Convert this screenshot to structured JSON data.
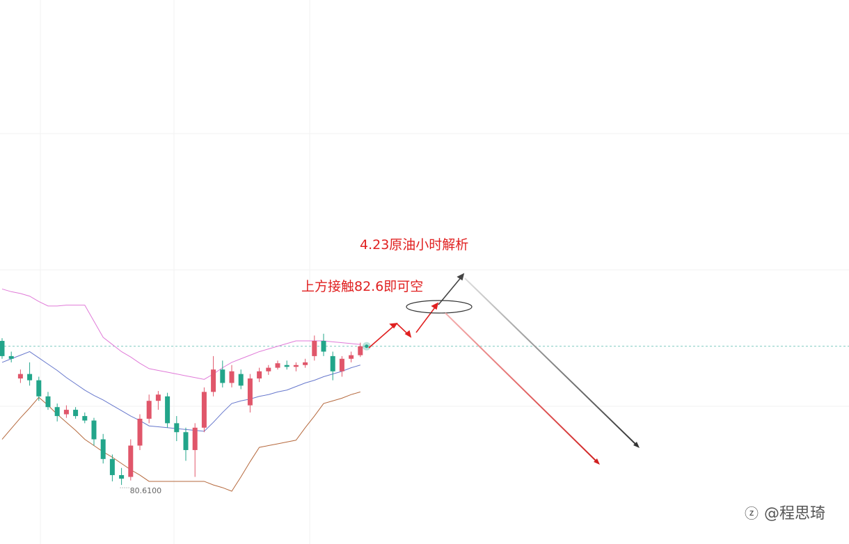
{
  "chart_data": {
    "type": "candlestick",
    "title": "4.23原油小时解析",
    "annotation": "上方接触82.6即可空",
    "low_label": "80.6100",
    "watermark": "@程思琦",
    "ylim": [
      79.95,
      86.03
    ],
    "up_color": "#e0566a",
    "down_color": "#22a58a",
    "candles": [
      [
        82.22,
        82.25,
        82.02,
        82.05
      ],
      [
        82.05,
        82.1,
        81.98,
        82.02
      ],
      [
        81.8,
        81.9,
        81.75,
        81.85
      ],
      [
        81.85,
        81.98,
        81.72,
        81.78
      ],
      [
        81.78,
        81.82,
        81.55,
        81.6
      ],
      [
        81.6,
        81.65,
        81.45,
        81.48
      ],
      [
        81.48,
        81.52,
        81.32,
        81.38
      ],
      [
        81.4,
        81.5,
        81.36,
        81.45
      ],
      [
        81.45,
        81.48,
        81.35,
        81.38
      ],
      [
        81.38,
        81.42,
        81.3,
        81.33
      ],
      [
        81.33,
        81.36,
        81.05,
        81.12
      ],
      [
        81.12,
        81.18,
        80.85,
        80.9
      ],
      [
        80.9,
        80.95,
        80.65,
        80.72
      ],
      [
        80.72,
        80.8,
        80.61,
        80.68
      ],
      [
        80.7,
        81.12,
        80.66,
        81.05
      ],
      [
        81.05,
        81.4,
        81.0,
        81.35
      ],
      [
        81.35,
        81.62,
        81.3,
        81.55
      ],
      [
        81.55,
        81.66,
        81.45,
        81.62
      ],
      [
        81.6,
        81.64,
        81.25,
        81.3
      ],
      [
        81.3,
        81.38,
        81.1,
        81.2
      ],
      [
        81.2,
        81.25,
        80.88,
        81.0
      ],
      [
        81.0,
        81.3,
        80.7,
        81.25
      ],
      [
        81.25,
        81.7,
        81.2,
        81.65
      ],
      [
        81.65,
        82.05,
        81.6,
        81.9
      ],
      [
        81.9,
        82.0,
        81.7,
        81.75
      ],
      [
        81.75,
        81.95,
        81.7,
        81.88
      ],
      [
        81.85,
        81.9,
        81.68,
        81.72
      ],
      [
        81.5,
        81.85,
        81.42,
        81.8
      ],
      [
        81.8,
        81.92,
        81.76,
        81.88
      ],
      [
        81.88,
        81.95,
        81.84,
        81.92
      ],
      [
        81.92,
        82.0,
        81.9,
        81.97
      ],
      [
        81.95,
        82.0,
        81.9,
        81.93
      ],
      [
        81.93,
        81.98,
        81.88,
        81.95
      ],
      [
        81.95,
        82.02,
        81.92,
        81.98
      ],
      [
        82.05,
        82.28,
        82.0,
        82.22
      ],
      [
        82.22,
        82.3,
        82.05,
        82.1
      ],
      [
        82.05,
        82.1,
        81.78,
        81.88
      ],
      [
        81.88,
        82.05,
        81.82,
        82.02
      ],
      [
        82.02,
        82.1,
        81.98,
        82.06
      ],
      [
        82.06,
        82.2,
        82.04,
        82.16
      ]
    ],
    "bands": [
      {
        "color": "#e07ad8",
        "values": [
          82.8,
          82.77,
          82.75,
          82.72,
          82.66,
          82.61,
          82.61,
          82.62,
          82.62,
          82.62,
          82.44,
          82.26,
          82.18,
          82.1,
          82.04,
          81.97,
          81.91,
          81.89,
          81.87,
          81.85,
          81.83,
          81.81,
          81.79,
          81.85,
          81.92,
          81.98,
          82.02,
          82.06,
          82.1,
          82.13,
          82.16,
          82.19,
          82.22,
          82.22,
          82.22,
          82.22,
          82.21,
          82.2,
          82.19,
          82.18
        ]
      },
      {
        "color": "#6677cc",
        "values": [
          81.98,
          82.02,
          82.06,
          82.1,
          82.03,
          81.96,
          81.89,
          81.81,
          81.74,
          81.67,
          81.61,
          81.56,
          81.5,
          81.44,
          81.38,
          81.33,
          81.27,
          81.26,
          81.25,
          81.24,
          81.23,
          81.22,
          81.21,
          81.31,
          81.42,
          81.52,
          81.55,
          81.57,
          81.6,
          81.62,
          81.65,
          81.67,
          81.71,
          81.75,
          81.78,
          81.82,
          81.85,
          81.88,
          81.92,
          81.95
        ]
      },
      {
        "color": "#b5683c",
        "values": [
          81.12,
          81.24,
          81.36,
          81.47,
          81.59,
          81.5,
          81.4,
          81.31,
          81.22,
          81.12,
          81.05,
          80.98,
          80.92,
          80.85,
          80.78,
          80.72,
          80.65,
          80.65,
          80.65,
          80.65,
          80.65,
          80.65,
          80.65,
          80.61,
          80.58,
          80.54,
          80.7,
          80.87,
          81.03,
          81.05,
          81.07,
          81.09,
          81.11,
          81.25,
          81.38,
          81.52,
          81.55,
          81.58,
          81.62,
          81.65
        ]
      }
    ]
  }
}
